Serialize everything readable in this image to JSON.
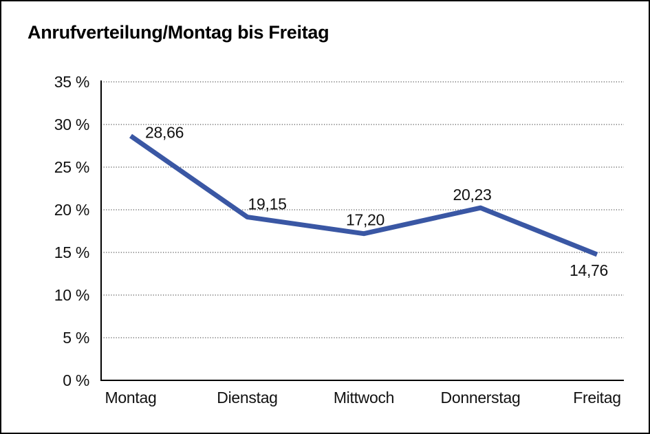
{
  "title": "Anrufverteilung/Montag bis Freitag",
  "chart_data": {
    "type": "line",
    "title": "Anrufverteilung/Montag bis Freitag",
    "categories": [
      "Montag",
      "Dienstag",
      "Mittwoch",
      "Donnerstag",
      "Freitag"
    ],
    "values": [
      28.66,
      19.15,
      17.2,
      20.23,
      14.76
    ],
    "point_labels": [
      "28,66",
      "19,15",
      "17,20",
      "20,23",
      "14,76"
    ],
    "y_tick_labels": [
      "0 %",
      "5 %",
      "10 %",
      "15 %",
      "20 %",
      "25 %",
      "30 %",
      "35 %"
    ],
    "y_min": 0,
    "y_max": 35,
    "y_step": 5,
    "xlabel": "",
    "ylabel": "",
    "grid": "horizontal-dotted",
    "legend": "none",
    "line_color": "#3A57A4",
    "axis_color": "#000000",
    "text_color": "#111111"
  }
}
